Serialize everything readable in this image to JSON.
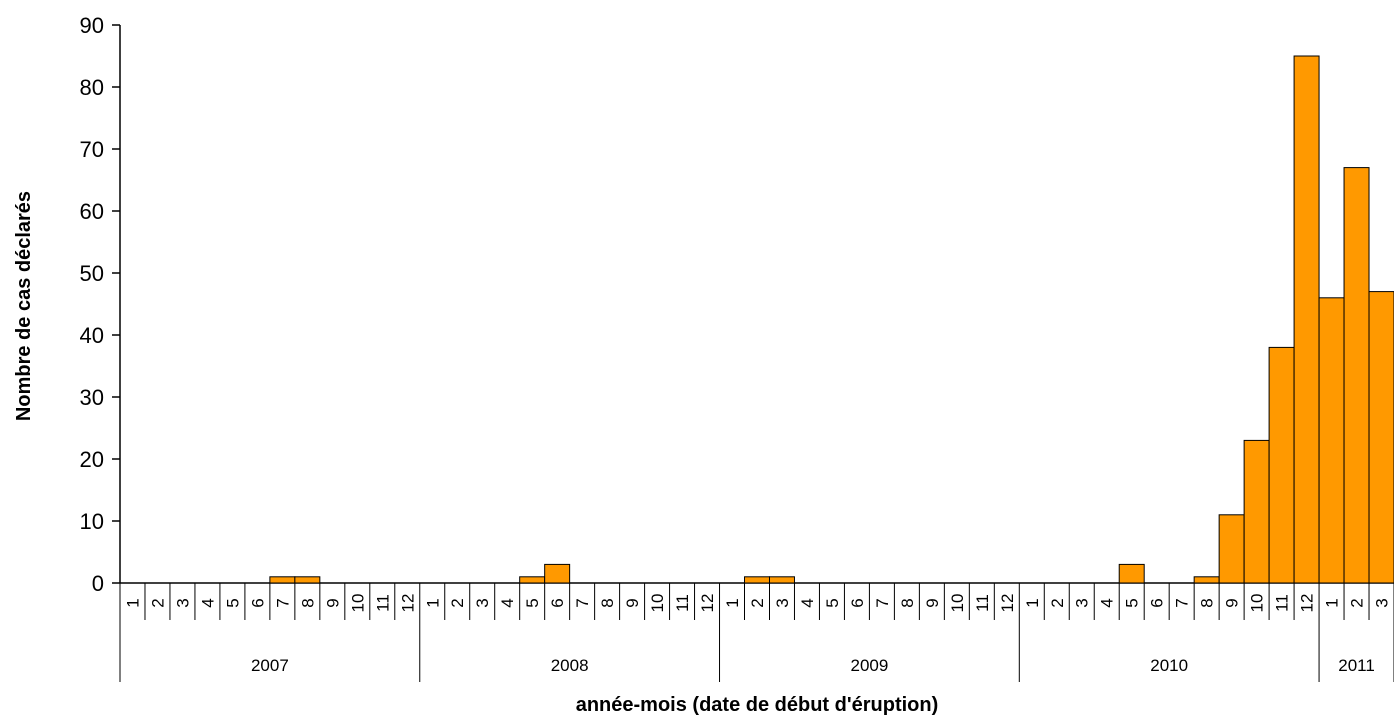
{
  "chart_data": {
    "type": "bar",
    "title": "",
    "xlabel": "année-mois (date de début d'éruption)",
    "ylabel": "Nombre de cas déclarés",
    "ylim": [
      0,
      90
    ],
    "yticks": [
      0,
      10,
      20,
      30,
      40,
      50,
      60,
      70,
      80,
      90
    ],
    "grid": false,
    "bar_color": "#FF9900",
    "years": [
      {
        "label": "2007",
        "months": 12
      },
      {
        "label": "2008",
        "months": 12
      },
      {
        "label": "2009",
        "months": 12
      },
      {
        "label": "2010",
        "months": 12
      },
      {
        "label": "2011",
        "months": 3
      }
    ],
    "categories": [
      "1",
      "2",
      "3",
      "4",
      "5",
      "6",
      "7",
      "8",
      "9",
      "10",
      "11",
      "12",
      "1",
      "2",
      "3",
      "4",
      "5",
      "6",
      "7",
      "8",
      "9",
      "10",
      "11",
      "12",
      "1",
      "2",
      "3",
      "4",
      "5",
      "6",
      "7",
      "8",
      "9",
      "10",
      "11",
      "12",
      "1",
      "2",
      "3",
      "4",
      "5",
      "6",
      "7",
      "8",
      "9",
      "10",
      "11",
      "12",
      "1",
      "2",
      "3"
    ],
    "values": [
      0,
      0,
      0,
      0,
      0,
      0,
      1,
      1,
      0,
      0,
      0,
      0,
      0,
      0,
      0,
      0,
      1,
      3,
      0,
      0,
      0,
      0,
      0,
      0,
      0,
      1,
      1,
      0,
      0,
      0,
      0,
      0,
      0,
      0,
      0,
      0,
      0,
      0,
      0,
      0,
      3,
      0,
      0,
      1,
      11,
      23,
      38,
      85,
      46,
      67,
      47
    ]
  }
}
